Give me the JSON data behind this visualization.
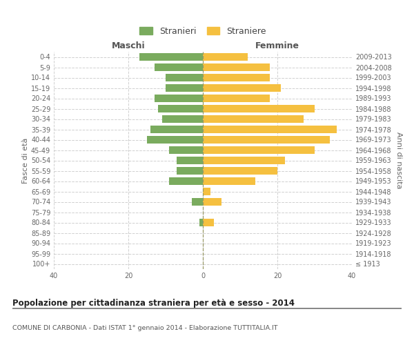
{
  "age_groups": [
    "100+",
    "95-99",
    "90-94",
    "85-89",
    "80-84",
    "75-79",
    "70-74",
    "65-69",
    "60-64",
    "55-59",
    "50-54",
    "45-49",
    "40-44",
    "35-39",
    "30-34",
    "25-29",
    "20-24",
    "15-19",
    "10-14",
    "5-9",
    "0-4"
  ],
  "birth_years": [
    "≤ 1913",
    "1914-1918",
    "1919-1923",
    "1924-1928",
    "1929-1933",
    "1934-1938",
    "1939-1943",
    "1944-1948",
    "1949-1953",
    "1954-1958",
    "1959-1963",
    "1964-1968",
    "1969-1973",
    "1974-1978",
    "1979-1983",
    "1984-1988",
    "1989-1993",
    "1994-1998",
    "1999-2003",
    "2004-2008",
    "2009-2013"
  ],
  "males": [
    0,
    0,
    0,
    0,
    1,
    0,
    3,
    0,
    9,
    7,
    7,
    9,
    15,
    14,
    11,
    12,
    13,
    10,
    10,
    13,
    17
  ],
  "females": [
    0,
    0,
    0,
    0,
    3,
    0,
    5,
    2,
    14,
    20,
    22,
    30,
    34,
    36,
    27,
    30,
    18,
    21,
    18,
    18,
    12
  ],
  "male_color": "#7aab5e",
  "female_color": "#f5c040",
  "title": "Popolazione per cittadinanza straniera per età e sesso - 2014",
  "subtitle": "COMUNE DI CARBONIA - Dati ISTAT 1° gennaio 2014 - Elaborazione TUTTITALIA.IT",
  "ylabel_left": "Fasce di età",
  "ylabel_right": "Anni di nascita",
  "xlabel_left": "Maschi",
  "xlabel_right": "Femmine",
  "legend_male": "Stranieri",
  "legend_female": "Straniere",
  "xlim": 40,
  "background_color": "#ffffff",
  "grid_color": "#d0d0d0",
  "bar_height": 0.75
}
